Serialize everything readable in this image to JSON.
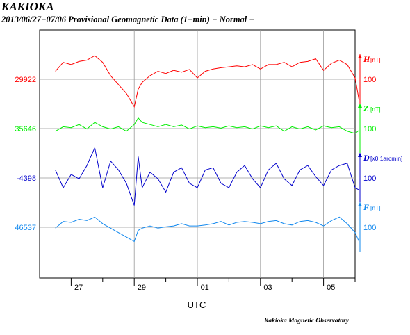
{
  "header": {
    "title": "KAKIOKA",
    "subtitle": "2013/06/27−07/06  Provisional Geomagnetic Data (1−min)  − Normal −"
  },
  "footer": {
    "observatory": "Kakioka Magnetic Observatory"
  },
  "chart_data": {
    "type": "line",
    "xlabel": "UTC",
    "x_ticks": [
      "27",
      "29",
      "01",
      "03",
      "05"
    ],
    "x_range_days": [
      "2013-06-26",
      "2013-07-06"
    ],
    "grid": true,
    "series": [
      {
        "component": "H",
        "unit": "nT",
        "scale": "100",
        "base_label": "29922",
        "color": "#ff0000",
        "points": [
          [
            "2013-06-26T12:00",
            29940
          ],
          [
            "2013-06-26T18:00",
            29960
          ],
          [
            "2013-06-27T00:00",
            29955
          ],
          [
            "2013-06-27T06:00",
            29962
          ],
          [
            "2013-06-27T12:00",
            29965
          ],
          [
            "2013-06-27T18:00",
            29975
          ],
          [
            "2013-06-28T00:00",
            29960
          ],
          [
            "2013-06-28T06:00",
            29930
          ],
          [
            "2013-06-28T12:00",
            29910
          ],
          [
            "2013-06-28T18:00",
            29890
          ],
          [
            "2013-06-29T00:00",
            29860
          ],
          [
            "2013-06-29T03:00",
            29900
          ],
          [
            "2013-06-29T06:00",
            29915
          ],
          [
            "2013-06-29T12:00",
            29930
          ],
          [
            "2013-06-29T18:00",
            29940
          ],
          [
            "2013-06-30T00:00",
            29935
          ],
          [
            "2013-06-30T06:00",
            29942
          ],
          [
            "2013-06-30T12:00",
            29938
          ],
          [
            "2013-06-30T18:00",
            29944
          ],
          [
            "2013-07-01T00:00",
            29925
          ],
          [
            "2013-07-01T06:00",
            29940
          ],
          [
            "2013-07-01T12:00",
            29945
          ],
          [
            "2013-07-01T18:00",
            29948
          ],
          [
            "2013-07-02T00:00",
            29950
          ],
          [
            "2013-07-02T06:00",
            29952
          ],
          [
            "2013-07-02T12:00",
            29950
          ],
          [
            "2013-07-02T18:00",
            29955
          ],
          [
            "2013-07-03T00:00",
            29945
          ],
          [
            "2013-07-03T06:00",
            29955
          ],
          [
            "2013-07-03T12:00",
            29955
          ],
          [
            "2013-07-03T18:00",
            29960
          ],
          [
            "2013-07-04T00:00",
            29950
          ],
          [
            "2013-07-04T06:00",
            29960
          ],
          [
            "2013-07-04T12:00",
            29962
          ],
          [
            "2013-07-04T18:00",
            29968
          ],
          [
            "2013-07-05T00:00",
            29942
          ],
          [
            "2013-07-05T06:00",
            29958
          ],
          [
            "2013-07-05T12:00",
            29965
          ],
          [
            "2013-07-05T18:00",
            29955
          ],
          [
            "2013-07-06T00:00",
            29925
          ],
          [
            "2013-07-06T03:00",
            29875
          ]
        ]
      },
      {
        "component": "Z",
        "unit": "nT",
        "scale": "100",
        "base_label": "35646",
        "color": "#00ee00",
        "points": [
          [
            "2013-06-26T12:00",
            35640
          ],
          [
            "2013-06-26T18:00",
            35650
          ],
          [
            "2013-06-27T00:00",
            35648
          ],
          [
            "2013-06-27T06:00",
            35655
          ],
          [
            "2013-06-27T12:00",
            35645
          ],
          [
            "2013-06-27T18:00",
            35660
          ],
          [
            "2013-06-28T00:00",
            35650
          ],
          [
            "2013-06-28T06:00",
            35645
          ],
          [
            "2013-06-28T12:00",
            35650
          ],
          [
            "2013-06-28T18:00",
            35640
          ],
          [
            "2013-06-29T00:00",
            35655
          ],
          [
            "2013-06-29T03:00",
            35670
          ],
          [
            "2013-06-29T06:00",
            35660
          ],
          [
            "2013-06-29T12:00",
            35655
          ],
          [
            "2013-06-29T18:00",
            35650
          ],
          [
            "2013-06-30T00:00",
            35655
          ],
          [
            "2013-06-30T06:00",
            35650
          ],
          [
            "2013-06-30T12:00",
            35654
          ],
          [
            "2013-06-30T18:00",
            35645
          ],
          [
            "2013-07-01T00:00",
            35652
          ],
          [
            "2013-07-01T06:00",
            35648
          ],
          [
            "2013-07-01T12:00",
            35650
          ],
          [
            "2013-07-01T18:00",
            35647
          ],
          [
            "2013-07-02T00:00",
            35652
          ],
          [
            "2013-07-02T06:00",
            35648
          ],
          [
            "2013-07-02T12:00",
            35650
          ],
          [
            "2013-07-02T18:00",
            35645
          ],
          [
            "2013-07-03T00:00",
            35652
          ],
          [
            "2013-07-03T06:00",
            35648
          ],
          [
            "2013-07-03T12:00",
            35652
          ],
          [
            "2013-07-03T18:00",
            35640
          ],
          [
            "2013-07-04T00:00",
            35650
          ],
          [
            "2013-07-04T06:00",
            35645
          ],
          [
            "2013-07-04T12:00",
            35650
          ],
          [
            "2013-07-04T18:00",
            35643
          ],
          [
            "2013-07-05T00:00",
            35652
          ],
          [
            "2013-07-05T06:00",
            35648
          ],
          [
            "2013-07-05T12:00",
            35650
          ],
          [
            "2013-07-05T18:00",
            35640
          ],
          [
            "2013-07-06T00:00",
            35635
          ],
          [
            "2013-07-06T03:00",
            35642
          ]
        ]
      },
      {
        "component": "D",
        "unit": "x0.1arcmin",
        "scale": "100",
        "base_label": "-4398",
        "color": "#0000cc",
        "points": [
          [
            "2013-06-26T12:00",
            -4380
          ],
          [
            "2013-06-26T18:00",
            -4420
          ],
          [
            "2013-06-27T00:00",
            -4390
          ],
          [
            "2013-06-27T06:00",
            -4400
          ],
          [
            "2013-06-27T12:00",
            -4370
          ],
          [
            "2013-06-27T18:00",
            -4330
          ],
          [
            "2013-06-28T00:00",
            -4420
          ],
          [
            "2013-06-28T06:00",
            -4360
          ],
          [
            "2013-06-28T12:00",
            -4380
          ],
          [
            "2013-06-28T18:00",
            -4410
          ],
          [
            "2013-06-29T00:00",
            -4460
          ],
          [
            "2013-06-29T03:00",
            -4350
          ],
          [
            "2013-06-29T06:00",
            -4420
          ],
          [
            "2013-06-29T12:00",
            -4385
          ],
          [
            "2013-06-29T18:00",
            -4400
          ],
          [
            "2013-06-30T00:00",
            -4430
          ],
          [
            "2013-06-30T06:00",
            -4385
          ],
          [
            "2013-06-30T12:00",
            -4375
          ],
          [
            "2013-06-30T18:00",
            -4410
          ],
          [
            "2013-07-01T00:00",
            -4420
          ],
          [
            "2013-07-01T06:00",
            -4380
          ],
          [
            "2013-07-01T12:00",
            -4375
          ],
          [
            "2013-07-01T18:00",
            -4410
          ],
          [
            "2013-07-02T00:00",
            -4420
          ],
          [
            "2013-07-02T06:00",
            -4385
          ],
          [
            "2013-07-02T12:00",
            -4370
          ],
          [
            "2013-07-02T18:00",
            -4400
          ],
          [
            "2013-07-03T00:00",
            -4420
          ],
          [
            "2013-07-03T06:00",
            -4380
          ],
          [
            "2013-07-03T12:00",
            -4365
          ],
          [
            "2013-07-03T18:00",
            -4400
          ],
          [
            "2013-07-04T00:00",
            -4415
          ],
          [
            "2013-07-04T06:00",
            -4380
          ],
          [
            "2013-07-04T12:00",
            -4370
          ],
          [
            "2013-07-04T18:00",
            -4395
          ],
          [
            "2013-07-05T00:00",
            -4415
          ],
          [
            "2013-07-05T06:00",
            -4380
          ],
          [
            "2013-07-05T12:00",
            -4370
          ],
          [
            "2013-07-05T18:00",
            -4365
          ],
          [
            "2013-07-06T00:00",
            -4420
          ],
          [
            "2013-07-06T03:00",
            -4425
          ]
        ]
      },
      {
        "component": "F",
        "unit": "nT",
        "scale": "100",
        "base_label": "46537",
        "color": "#1188ee",
        "points": [
          [
            "2013-06-26T12:00",
            46535
          ],
          [
            "2013-06-26T18:00",
            46550
          ],
          [
            "2013-06-27T00:00",
            46548
          ],
          [
            "2013-06-27T06:00",
            46555
          ],
          [
            "2013-06-27T12:00",
            46552
          ],
          [
            "2013-06-27T18:00",
            46560
          ],
          [
            "2013-06-28T00:00",
            46545
          ],
          [
            "2013-06-28T06:00",
            46535
          ],
          [
            "2013-06-28T12:00",
            46525
          ],
          [
            "2013-06-28T18:00",
            46515
          ],
          [
            "2013-06-29T00:00",
            46505
          ],
          [
            "2013-06-29T03:00",
            46530
          ],
          [
            "2013-06-29T06:00",
            46535
          ],
          [
            "2013-06-29T12:00",
            46540
          ],
          [
            "2013-06-29T18:00",
            46535
          ],
          [
            "2013-06-30T00:00",
            46538
          ],
          [
            "2013-06-30T06:00",
            46540
          ],
          [
            "2013-06-30T12:00",
            46545
          ],
          [
            "2013-06-30T18:00",
            46540
          ],
          [
            "2013-07-01T00:00",
            46540
          ],
          [
            "2013-07-01T06:00",
            46542
          ],
          [
            "2013-07-01T12:00",
            46545
          ],
          [
            "2013-07-01T18:00",
            46550
          ],
          [
            "2013-07-02T00:00",
            46542
          ],
          [
            "2013-07-02T06:00",
            46548
          ],
          [
            "2013-07-02T12:00",
            46550
          ],
          [
            "2013-07-02T18:00",
            46548
          ],
          [
            "2013-07-03T00:00",
            46545
          ],
          [
            "2013-07-03T06:00",
            46550
          ],
          [
            "2013-07-03T12:00",
            46552
          ],
          [
            "2013-07-03T18:00",
            46545
          ],
          [
            "2013-07-04T00:00",
            46542
          ],
          [
            "2013-07-04T06:00",
            46550
          ],
          [
            "2013-07-04T12:00",
            46552
          ],
          [
            "2013-07-04T18:00",
            46548
          ],
          [
            "2013-07-05T00:00",
            46540
          ],
          [
            "2013-07-05T06:00",
            46552
          ],
          [
            "2013-07-05T12:00",
            46560
          ],
          [
            "2013-07-05T18:00",
            46545
          ],
          [
            "2013-07-06T00:00",
            46525
          ],
          [
            "2013-07-06T03:00",
            46505
          ]
        ]
      }
    ]
  }
}
